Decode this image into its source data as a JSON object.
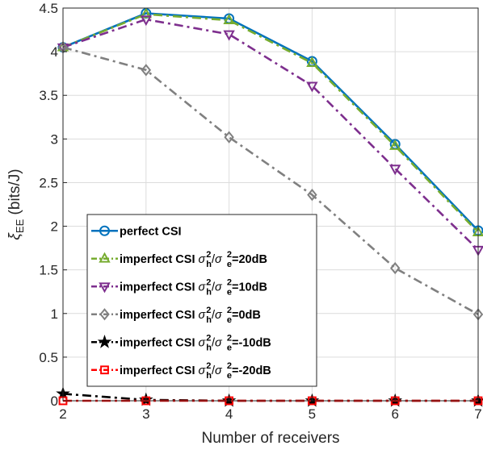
{
  "chart_data": {
    "type": "line",
    "xlabel": "Number of receivers",
    "ylabel": "ξ_EE (bits/J)",
    "ylabel_parts": {
      "xi": "ξ",
      "sub": "EE",
      "unit": " (bits/J)"
    },
    "x": [
      2,
      3,
      4,
      5,
      6,
      7
    ],
    "xlim": [
      2,
      7
    ],
    "ylim": [
      0,
      4.5
    ],
    "xticks": [
      "2",
      "3",
      "4",
      "5",
      "6",
      "7"
    ],
    "yticks": [
      "0",
      "0.5",
      "1",
      "1.5",
      "2",
      "2.5",
      "3",
      "3.5",
      "4",
      "4.5"
    ],
    "grid": true,
    "legend_position": "lower-left",
    "series": [
      {
        "name": "perfect CSI",
        "legend": {
          "prefix": "perfect CSI",
          "suffix": ""
        },
        "values": [
          4.05,
          4.44,
          4.38,
          3.89,
          2.94,
          1.95
        ],
        "color": "#0072BD",
        "marker": "circle",
        "dash": "solid"
      },
      {
        "name": "imperfect CSI σh²/σe²=20dB",
        "legend": {
          "prefix": "imperfect CSI ",
          "suffix": "=20dB"
        },
        "values": [
          4.05,
          4.43,
          4.36,
          3.87,
          2.92,
          1.93
        ],
        "color": "#77AC30",
        "marker": "triangle-up",
        "dash": "dashdot"
      },
      {
        "name": "imperfect CSI σh²/σe²=10dB",
        "legend": {
          "prefix": "imperfect CSI ",
          "suffix": "=10dB"
        },
        "values": [
          4.05,
          4.37,
          4.2,
          3.61,
          2.66,
          1.73
        ],
        "color": "#7E2F8E",
        "marker": "triangle-down",
        "dash": "dashdot"
      },
      {
        "name": "imperfect CSI σh²/σe²=0dB",
        "legend": {
          "prefix": "imperfect CSI ",
          "suffix": "=0dB"
        },
        "values": [
          4.05,
          3.79,
          3.02,
          2.36,
          1.52,
          0.99
        ],
        "color": "#808080",
        "marker": "diamond",
        "dash": "dashdot"
      },
      {
        "name": "imperfect CSI σh²/σe²=-10dB",
        "legend": {
          "prefix": "imperfect CSI ",
          "suffix": "=-10dB"
        },
        "values": [
          0.08,
          0.01,
          0.0,
          0.0,
          0.0,
          0.0
        ],
        "color": "#000000",
        "marker": "star",
        "dash": "dashdot"
      },
      {
        "name": "imperfect CSI σh²/σe²=-20dB",
        "legend": {
          "prefix": "imperfect CSI ",
          "suffix": "=-20dB"
        },
        "values": [
          0.0,
          0.0,
          0.0,
          0.0,
          0.0,
          0.0
        ],
        "color": "#FF0000",
        "marker": "square",
        "dash": "dashdot"
      }
    ]
  }
}
